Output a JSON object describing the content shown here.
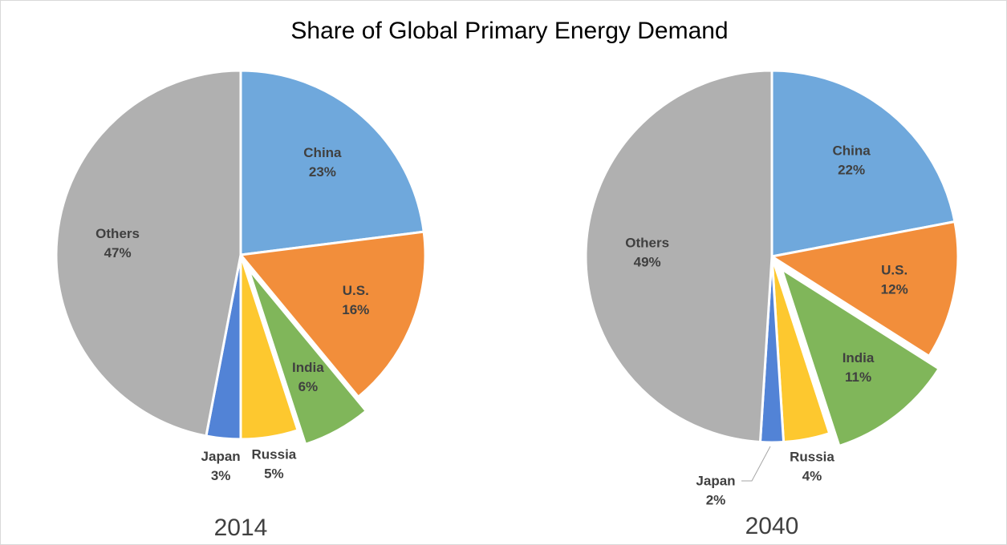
{
  "title": "Share of Global Primary Energy Demand",
  "chart_data": [
    {
      "type": "pie",
      "title": "2014",
      "categories": [
        "China",
        "U.S.",
        "India",
        "Russia",
        "Japan",
        "Others"
      ],
      "values": [
        23,
        16,
        6,
        5,
        3,
        47
      ],
      "value_labels": [
        "23%",
        "16%",
        "6%",
        "5%",
        "3%",
        "47%"
      ],
      "colors": [
        "#6fa8dc",
        "#f28e3b",
        "#80b65a",
        "#fdc82f",
        "#5283d6",
        "#b0b0b0"
      ],
      "explode": [
        false,
        false,
        true,
        false,
        false,
        false
      ]
    },
    {
      "type": "pie",
      "title": "2040",
      "categories": [
        "China",
        "U.S.",
        "India",
        "Russia",
        "Japan",
        "Others"
      ],
      "values": [
        22,
        12,
        11,
        4,
        2,
        49
      ],
      "value_labels": [
        "22%",
        "12%",
        "11%",
        "4%",
        "2%",
        "49%"
      ],
      "colors": [
        "#6fa8dc",
        "#f28e3b",
        "#80b65a",
        "#fdc82f",
        "#5283d6",
        "#b0b0b0"
      ],
      "explode": [
        false,
        false,
        true,
        false,
        false,
        false
      ]
    }
  ]
}
